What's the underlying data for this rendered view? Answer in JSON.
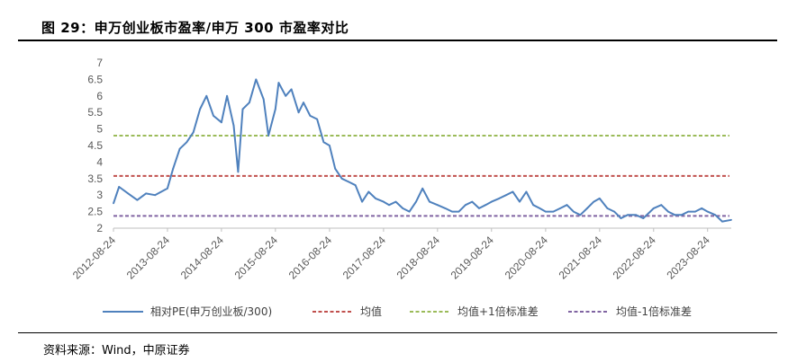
{
  "header": {
    "figure_title": "图 29：申万创业板市盈率/申万 300 市盈率对比"
  },
  "source": "资料来源：Wind，中原证券",
  "chart_data": {
    "type": "line",
    "title": "",
    "xlabel": "",
    "ylabel": "",
    "ylim": [
      2,
      7
    ],
    "yticks": [
      "2",
      "2.5",
      "3",
      "3.5",
      "4",
      "4.5",
      "5",
      "5.5",
      "6",
      "6.5",
      "7"
    ],
    "xticks": [
      "2012-08-24",
      "2013-08-24",
      "2014-08-24",
      "2015-08-24",
      "2016-08-24",
      "2017-08-24",
      "2018-08-24",
      "2019-08-24",
      "2020-08-24",
      "2021-08-24",
      "2022-08-24",
      "2023-08-24"
    ],
    "xrange": [
      "2012-08-24",
      "2024-01-31"
    ],
    "grid": false,
    "legend_position": "bottom",
    "series": [
      {
        "name": "相对PE(申万创业板/300)",
        "color": "#4f81bd",
        "x": [
          "2012-08-24",
          "2012-10-01",
          "2012-12-01",
          "2013-02-01",
          "2013-04-01",
          "2013-06-01",
          "2013-08-24",
          "2013-10-01",
          "2013-11-15",
          "2014-01-01",
          "2014-02-15",
          "2014-04-01",
          "2014-05-15",
          "2014-07-01",
          "2014-08-24",
          "2014-10-01",
          "2014-11-15",
          "2014-12-15",
          "2015-01-15",
          "2015-03-01",
          "2015-04-15",
          "2015-06-05",
          "2015-07-08",
          "2015-08-24",
          "2015-09-15",
          "2015-11-01",
          "2015-12-10",
          "2016-01-28",
          "2016-03-01",
          "2016-04-15",
          "2016-06-01",
          "2016-07-15",
          "2016-08-24",
          "2016-10-01",
          "2016-11-15",
          "2017-01-01",
          "2017-02-15",
          "2017-04-01",
          "2017-05-15",
          "2017-07-01",
          "2017-08-24",
          "2017-10-01",
          "2017-11-15",
          "2018-01-01",
          "2018-02-15",
          "2018-04-01",
          "2018-05-15",
          "2018-07-01",
          "2018-08-24",
          "2018-10-15",
          "2018-12-01",
          "2019-01-15",
          "2019-03-01",
          "2019-04-15",
          "2019-06-01",
          "2019-07-15",
          "2019-08-24",
          "2019-10-15",
          "2019-12-01",
          "2020-01-15",
          "2020-03-01",
          "2020-04-15",
          "2020-06-01",
          "2020-07-15",
          "2020-08-24",
          "2020-10-15",
          "2020-12-01",
          "2021-01-15",
          "2021-03-01",
          "2021-04-15",
          "2021-06-01",
          "2021-07-15",
          "2021-08-24",
          "2021-10-15",
          "2021-12-01",
          "2022-01-15",
          "2022-03-01",
          "2022-04-27",
          "2022-06-15",
          "2022-08-01",
          "2022-08-24",
          "2022-10-15",
          "2022-12-01",
          "2023-01-15",
          "2023-03-01",
          "2023-04-15",
          "2023-06-01",
          "2023-07-15",
          "2023-08-24",
          "2023-10-15",
          "2023-12-01",
          "2024-01-31"
        ],
        "values": [
          2.75,
          3.25,
          3.05,
          2.85,
          3.05,
          3.0,
          3.2,
          3.8,
          4.4,
          4.6,
          4.9,
          5.6,
          6.0,
          5.4,
          5.2,
          6.0,
          5.1,
          3.7,
          5.6,
          5.8,
          6.5,
          5.9,
          4.8,
          5.6,
          6.4,
          6.0,
          6.2,
          5.5,
          5.8,
          5.4,
          5.3,
          4.6,
          4.5,
          3.8,
          3.5,
          3.4,
          3.3,
          2.8,
          3.1,
          2.9,
          2.8,
          2.7,
          2.8,
          2.6,
          2.5,
          2.8,
          3.2,
          2.8,
          2.7,
          2.6,
          2.5,
          2.5,
          2.7,
          2.8,
          2.6,
          2.7,
          2.8,
          2.9,
          3.0,
          3.1,
          2.8,
          3.1,
          2.7,
          2.6,
          2.5,
          2.5,
          2.6,
          2.7,
          2.5,
          2.4,
          2.6,
          2.8,
          2.9,
          2.6,
          2.5,
          2.3,
          2.4,
          2.4,
          2.3,
          2.5,
          2.6,
          2.7,
          2.5,
          2.4,
          2.4,
          2.5,
          2.5,
          2.6,
          2.5,
          2.4,
          2.2,
          2.25
        ]
      },
      {
        "name": "均值",
        "color": "#c0504d",
        "style": "dashed",
        "value": 3.58
      },
      {
        "name": "均值+1倍标准差",
        "color": "#9bbb59",
        "style": "dashed",
        "value": 4.8
      },
      {
        "name": "均值-1倍标准差",
        "color": "#8064a2",
        "style": "dashed",
        "value": 2.37
      }
    ]
  }
}
